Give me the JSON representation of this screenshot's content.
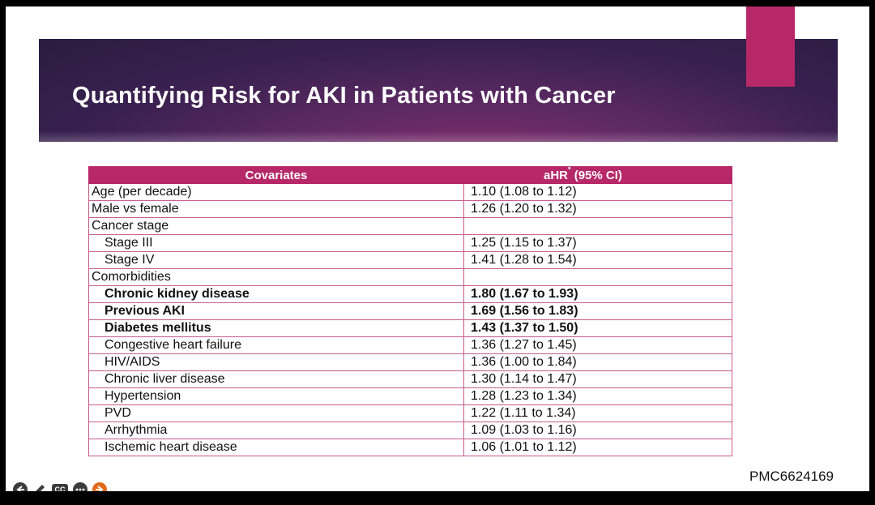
{
  "slide": {
    "title": "Quantifying Risk for AKI in Patients with Cancer",
    "source": "PMC6624169"
  },
  "table": {
    "headers": {
      "covariates": "Covariates",
      "ahr": "aHR",
      "ahr_star": "*",
      "ci": " (95% CI)"
    },
    "rows": [
      {
        "label": "Age (per decade)",
        "value": "1.10 (1.08 to 1.12)"
      },
      {
        "label": "Male vs female",
        "value": "1.26 (1.20 to 1.32)"
      },
      {
        "label": "Cancer stage",
        "value": ""
      },
      {
        "label": "Stage III",
        "value": "1.25 (1.15 to 1.37)"
      },
      {
        "label": "Stage IV",
        "value": "1.41 (1.28 to 1.54)"
      },
      {
        "label": "Comorbidities",
        "value": ""
      },
      {
        "label": "Chronic kidney disease",
        "value": "1.80 (1.67 to 1.93)"
      },
      {
        "label": "Previous AKI",
        "value": "1.69 (1.56 to 1.83)"
      },
      {
        "label": "Diabetes mellitus",
        "value": "1.43 (1.37 to 1.50)"
      },
      {
        "label": "Congestive heart failure",
        "value": "1.36 (1.27 to 1.45)"
      },
      {
        "label": "HIV/AIDS",
        "value": "1.36 (1.00 to 1.84)"
      },
      {
        "label": "Chronic liver disease",
        "value": "1.30 (1.14 to 1.47)"
      },
      {
        "label": "Hypertension",
        "value": "1.28 (1.23 to 1.34)"
      },
      {
        "label": "PVD",
        "value": "1.22 (1.11 to 1.34)"
      },
      {
        "label": "Arrhythmia",
        "value": "1.09 (1.03 to 1.16)"
      },
      {
        "label": "Ischemic heart disease",
        "value": "1.06 (1.01 to 1.12)"
      }
    ]
  },
  "controls": {
    "cc_label": "CC",
    "icons": [
      "back-arrow-icon",
      "pencil-icon",
      "closed-captions-icon",
      "more-icon",
      "next-slide-icon"
    ]
  },
  "colors": {
    "accent": "#b62868",
    "banner_dark": "#2a1c42",
    "banner_mid": "#5e2a63",
    "grid_line": "#c75a8d"
  }
}
